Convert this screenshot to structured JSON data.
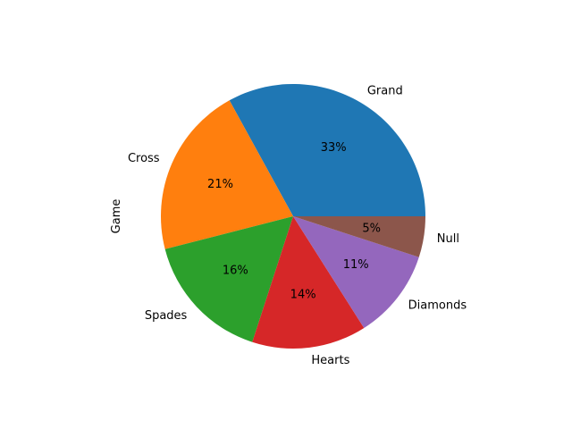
{
  "chart_data": {
    "type": "pie",
    "ylabel": "Game",
    "labels": [
      "Grand",
      "Cross",
      "Spades",
      "Hearts",
      "Diamonds",
      "Null"
    ],
    "values": [
      33,
      21,
      16,
      14,
      11,
      5
    ],
    "pct_labels": [
      "33%",
      "21%",
      "16%",
      "14%",
      "11%",
      "5%"
    ],
    "colors": [
      "#1f77b4",
      "#ff7f0e",
      "#2ca02c",
      "#d62728",
      "#9467bd",
      "#8c564b"
    ],
    "start_angle_deg": 0,
    "direction": "counterclockwise",
    "legend": "none"
  }
}
